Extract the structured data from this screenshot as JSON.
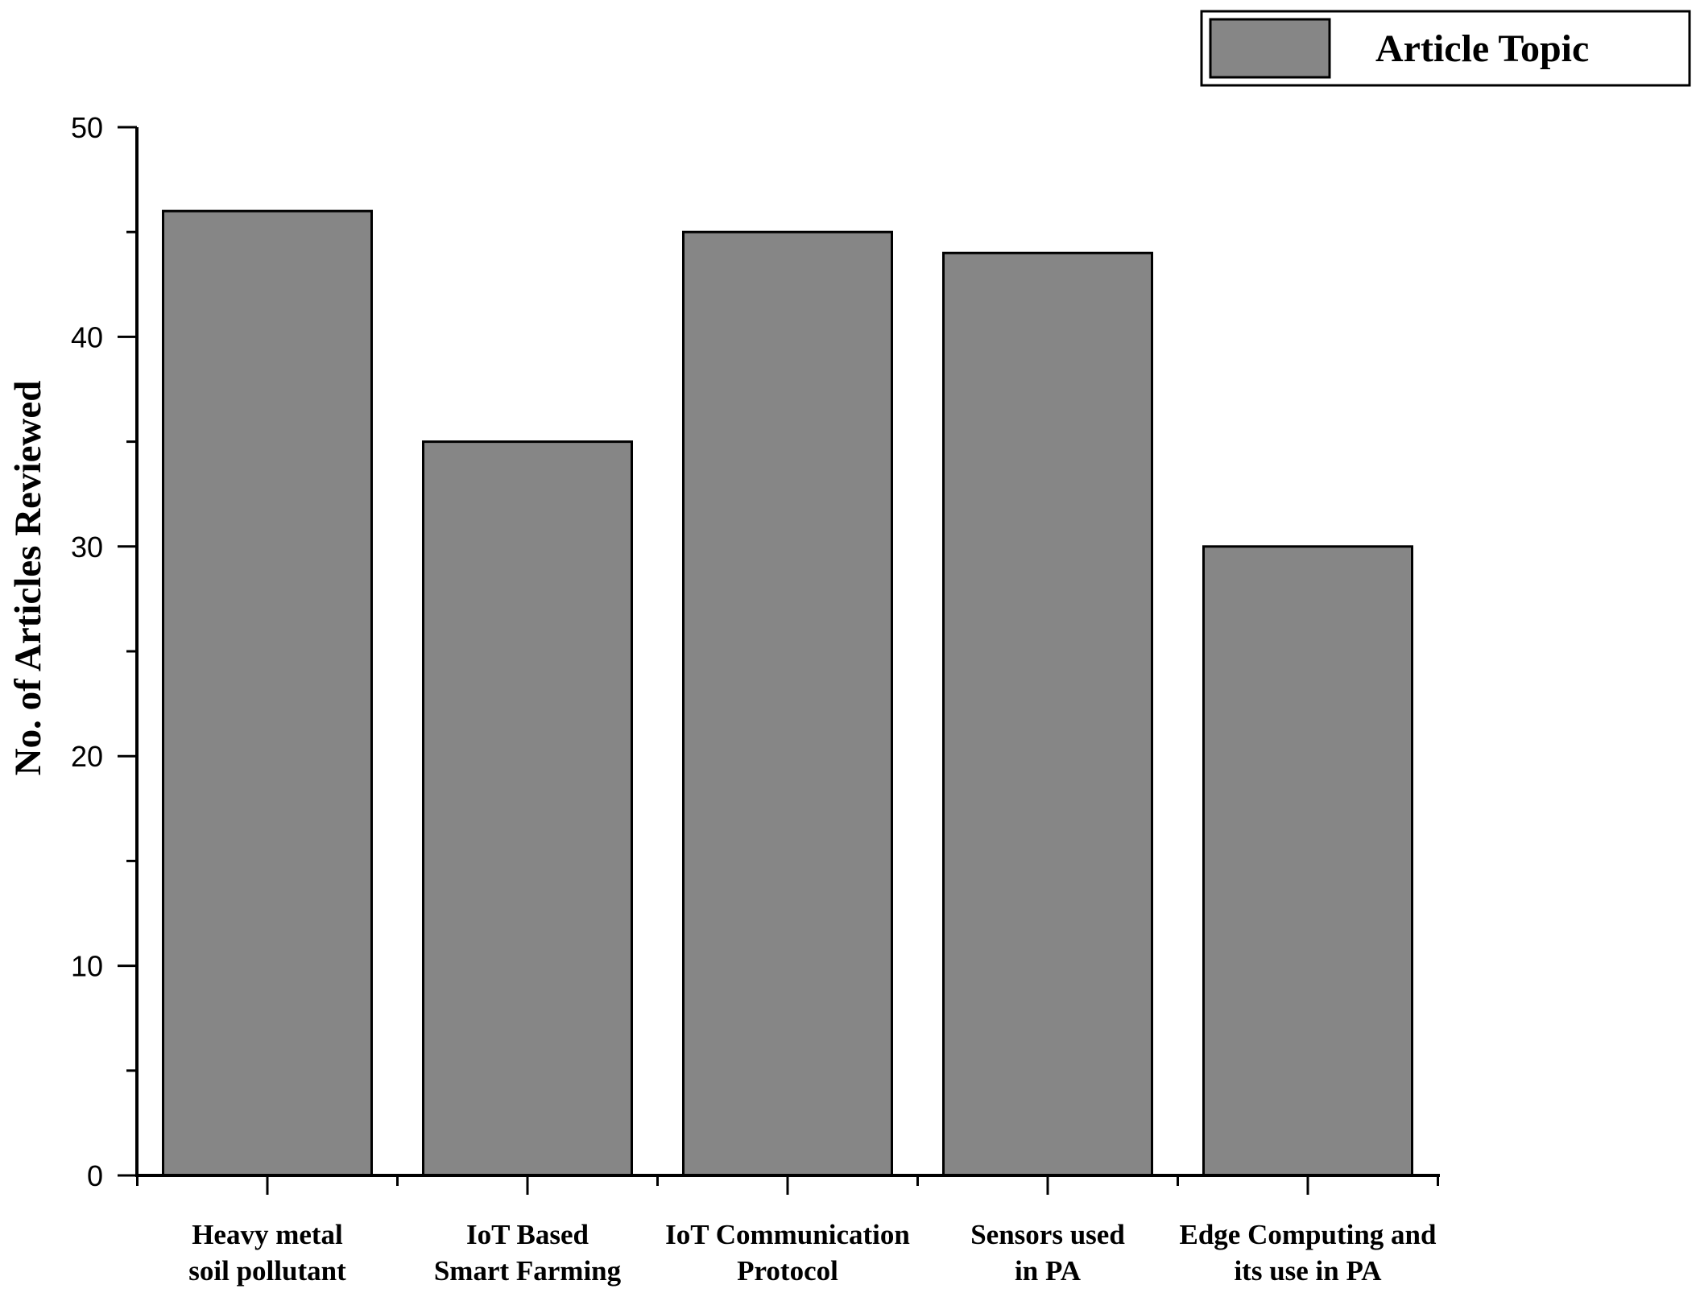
{
  "chart_data": {
    "type": "bar",
    "categories": [
      [
        "Heavy metal",
        "soil pollutant"
      ],
      [
        "IoT Based",
        "Smart Farming"
      ],
      [
        "IoT Communication",
        "Protocol"
      ],
      [
        "Sensors used",
        "in PA"
      ],
      [
        "Edge Computing and",
        "its use in PA"
      ]
    ],
    "series": [
      {
        "name": "Article Topic",
        "values": [
          46,
          35,
          45,
          44,
          30
        ]
      }
    ],
    "ylabel": "No. of Articles Reviewed",
    "xlabel": "",
    "ylim": [
      0,
      50
    ],
    "yticks": [
      0,
      10,
      20,
      30,
      40,
      50
    ],
    "grid": false,
    "legend_position": "top-right",
    "bar_color": "#868686",
    "edge_color": "#000000"
  }
}
